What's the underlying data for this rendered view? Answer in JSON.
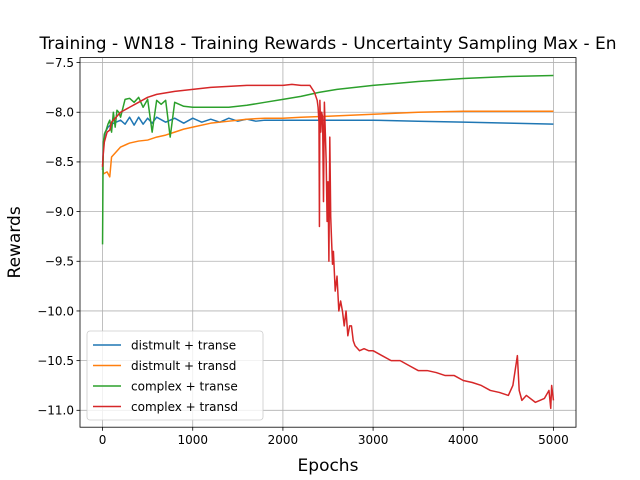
{
  "chart_data": {
    "type": "line",
    "title": "Training - WN18 - Training Rewards - Uncertainty Sampling Max - En",
    "xlabel": "Epochs",
    "ylabel": "Rewards",
    "xlim": [
      -250,
      5250
    ],
    "ylim": [
      -11.17,
      -7.45
    ],
    "xticks": [
      0,
      1000,
      2000,
      3000,
      4000,
      5000
    ],
    "xtick_labels": [
      "0",
      "1000",
      "2000",
      "3000",
      "4000",
      "5000"
    ],
    "yticks": [
      -7.5,
      -8.0,
      -8.5,
      -9.0,
      -9.5,
      -10.0,
      -10.5,
      -11.0
    ],
    "ytick_labels": [
      "−7.5",
      "−8.0",
      "−8.5",
      "−9.0",
      "−9.5",
      "−10.0",
      "−10.5",
      "−11.0"
    ],
    "grid": true,
    "legend_position": "lower-left",
    "series": [
      {
        "name": "distmult + transe",
        "color": "#1f77b4",
        "x": [
          0,
          10,
          30,
          60,
          100,
          150,
          200,
          250,
          300,
          350,
          400,
          450,
          500,
          550,
          600,
          700,
          800,
          900,
          1000,
          1100,
          1200,
          1300,
          1400,
          1500,
          1600,
          1700,
          1800,
          2000,
          2200,
          2400,
          2600,
          3000,
          3500,
          4000,
          4500,
          5000
        ],
        "y": [
          -8.58,
          -8.3,
          -8.2,
          -8.15,
          -8.12,
          -8.1,
          -8.08,
          -8.12,
          -8.05,
          -8.13,
          -8.05,
          -8.12,
          -8.06,
          -8.11,
          -8.05,
          -8.1,
          -8.06,
          -8.11,
          -8.06,
          -8.1,
          -8.07,
          -8.1,
          -8.06,
          -8.09,
          -8.07,
          -8.09,
          -8.08,
          -8.08,
          -8.08,
          -8.08,
          -8.08,
          -8.08,
          -8.09,
          -8.1,
          -8.11,
          -8.12
        ]
      },
      {
        "name": "distmult + transd",
        "color": "#ff7f0e",
        "x": [
          0,
          10,
          50,
          80,
          100,
          150,
          200,
          300,
          400,
          500,
          600,
          700,
          800,
          900,
          1000,
          1200,
          1400,
          1600,
          1800,
          2000,
          2200,
          2500,
          3000,
          3500,
          4000,
          4500,
          5000
        ],
        "y": [
          -8.52,
          -8.62,
          -8.6,
          -8.65,
          -8.45,
          -8.4,
          -8.35,
          -8.31,
          -8.29,
          -8.28,
          -8.25,
          -8.23,
          -8.2,
          -8.17,
          -8.15,
          -8.11,
          -8.09,
          -8.07,
          -8.06,
          -8.06,
          -8.05,
          -8.04,
          -8.02,
          -8.0,
          -7.99,
          -7.99,
          -7.99
        ]
      },
      {
        "name": "complex + transe",
        "color": "#2ca02c",
        "x": [
          0,
          5,
          10,
          20,
          40,
          60,
          80,
          100,
          120,
          140,
          160,
          180,
          200,
          250,
          300,
          350,
          400,
          450,
          500,
          550,
          600,
          650,
          700,
          750,
          800,
          900,
          1000,
          1200,
          1400,
          1600,
          1800,
          2000,
          2200,
          2400,
          2600,
          3000,
          3500,
          4000,
          4500,
          5000
        ],
        "y": [
          -9.33,
          -8.6,
          -8.3,
          -8.22,
          -8.18,
          -8.12,
          -8.08,
          -8.2,
          -8.0,
          -8.15,
          -7.98,
          -8.0,
          -8.05,
          -7.87,
          -7.86,
          -7.9,
          -7.85,
          -7.95,
          -7.87,
          -8.2,
          -7.88,
          -7.92,
          -7.88,
          -8.25,
          -7.9,
          -7.94,
          -7.95,
          -7.95,
          -7.95,
          -7.93,
          -7.9,
          -7.87,
          -7.84,
          -7.8,
          -7.77,
          -7.73,
          -7.69,
          -7.66,
          -7.64,
          -7.63
        ]
      },
      {
        "name": "complex + transd",
        "color": "#d62728",
        "x": [
          0,
          5,
          20,
          50,
          80,
          100,
          150,
          200,
          300,
          400,
          500,
          600,
          800,
          1000,
          1200,
          1400,
          1600,
          1800,
          2000,
          2100,
          2200,
          2300,
          2350,
          2380,
          2390,
          2400,
          2405,
          2410,
          2420,
          2430,
          2440,
          2450,
          2460,
          2480,
          2490,
          2500,
          2510,
          2520,
          2530,
          2540,
          2550,
          2560,
          2580,
          2600,
          2620,
          2640,
          2660,
          2680,
          2700,
          2720,
          2740,
          2760,
          2780,
          2800,
          2850,
          2900,
          2950,
          3000,
          3100,
          3200,
          3300,
          3400,
          3500,
          3600,
          3700,
          3800,
          3900,
          4000,
          4100,
          4200,
          4300,
          4400,
          4500,
          4550,
          4600,
          4620,
          4650,
          4700,
          4800,
          4900,
          4950,
          4970,
          4980,
          5000
        ],
        "y": [
          -8.55,
          -8.45,
          -8.3,
          -8.2,
          -8.18,
          -8.1,
          -8.05,
          -8.0,
          -7.95,
          -7.9,
          -7.85,
          -7.82,
          -7.79,
          -7.77,
          -7.75,
          -7.74,
          -7.73,
          -7.73,
          -7.73,
          -7.72,
          -7.73,
          -7.73,
          -7.8,
          -7.88,
          -7.95,
          -8.1,
          -9.15,
          -7.88,
          -8.2,
          -8.0,
          -8.05,
          -8.9,
          -7.9,
          -8.5,
          -9.1,
          -8.7,
          -9.5,
          -8.25,
          -9.05,
          -9.3,
          -9.53,
          -9.4,
          -9.8,
          -9.65,
          -10.0,
          -9.9,
          -10.0,
          -10.15,
          -10.0,
          -10.25,
          -10.15,
          -10.15,
          -10.3,
          -10.35,
          -10.4,
          -10.38,
          -10.4,
          -10.4,
          -10.45,
          -10.5,
          -10.5,
          -10.55,
          -10.6,
          -10.6,
          -10.62,
          -10.65,
          -10.65,
          -10.7,
          -10.72,
          -10.75,
          -10.8,
          -10.82,
          -10.85,
          -10.75,
          -10.45,
          -10.8,
          -10.9,
          -10.85,
          -10.92,
          -10.88,
          -10.8,
          -10.98,
          -10.75,
          -10.9
        ]
      }
    ]
  }
}
